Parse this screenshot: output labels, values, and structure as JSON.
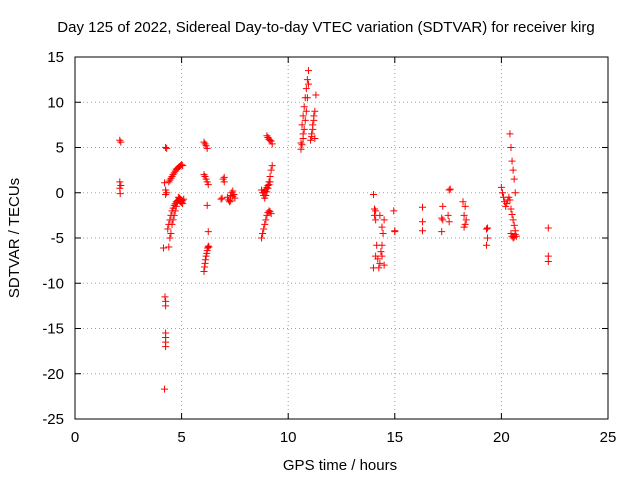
{
  "chart_data": {
    "type": "scatter",
    "title": "Day 125 of 2022, Sidereal Day-to-day VTEC variation (SDTVAR) for receiver kirg",
    "xlabel": "GPS time / hours",
    "ylabel": "SDTVAR / TECUs",
    "xlim": [
      0,
      25
    ],
    "ylim": [
      -25,
      15
    ],
    "xticks": [
      0,
      5,
      10,
      15,
      20,
      25
    ],
    "yticks": [
      -25,
      -20,
      -15,
      -10,
      -5,
      0,
      5,
      10,
      15
    ],
    "grid": true,
    "marker": "+",
    "series_color": "#ff0000",
    "x": [
      2.1,
      2.15,
      2.1,
      2.15,
      2.1,
      2.12,
      4.15,
      4.2,
      4.25,
      4.3,
      4.22,
      4.2,
      4.25,
      4.25,
      4.25,
      4.25,
      4.25,
      4.25,
      4.25,
      4.25,
      4.3,
      4.35,
      4.4,
      4.45,
      4.5,
      4.55,
      4.6,
      4.65,
      4.7,
      4.75,
      4.8,
      4.85,
      4.9,
      4.95,
      5.0,
      5.05,
      4.4,
      4.45,
      4.5,
      4.55,
      4.6,
      4.65,
      4.7,
      4.75,
      4.8,
      4.85,
      4.9,
      4.95,
      5.0,
      5.05,
      4.4,
      4.45,
      4.5,
      4.55,
      4.6,
      4.65,
      4.7,
      4.75,
      4.8,
      4.85,
      4.9,
      4.95,
      5.0,
      5.05,
      5.1,
      6.05,
      6.1,
      6.15,
      6.2,
      6.05,
      6.1,
      6.15,
      6.2,
      6.25,
      6.05,
      6.08,
      6.1,
      6.12,
      6.15,
      6.18,
      6.2,
      6.22,
      6.25,
      6.28,
      6.2,
      6.25,
      6.85,
      6.9,
      6.95,
      7.0,
      7.0,
      7.15,
      7.2,
      7.25,
      7.3,
      7.35,
      7.4,
      7.45,
      7.5,
      7.3,
      7.4,
      8.75,
      8.8,
      8.85,
      8.9,
      8.95,
      9.0,
      9.05,
      9.1,
      9.15,
      9.2,
      8.85,
      8.9,
      8.95,
      9.0,
      9.05,
      9.1,
      9.15,
      9.2,
      9.25,
      8.75,
      8.8,
      8.85,
      8.9,
      8.95,
      9.0,
      9.05,
      9.1,
      9.15,
      9.0,
      9.05,
      9.1,
      9.15,
      9.2,
      9.25,
      10.6,
      10.65,
      10.7,
      10.75,
      10.8,
      10.85,
      10.9,
      10.95,
      10.65,
      10.7,
      10.75,
      10.8,
      10.85,
      10.9,
      10.95,
      10.6,
      10.7,
      11.05,
      11.1,
      11.15,
      11.2,
      11.25,
      11.3,
      11.1,
      11.15,
      11.2,
      11.25,
      14.0,
      14.05,
      14.1,
      14.15,
      14.2,
      14.0,
      14.1,
      14.05,
      14.1,
      14.25,
      14.3,
      14.35,
      14.4,
      14.45,
      14.5,
      14.3,
      14.4,
      14.5,
      14.4,
      14.95,
      15.0,
      15.0,
      16.3,
      16.3,
      16.3,
      17.2,
      17.25,
      17.2,
      17.25,
      17.55,
      17.6,
      17.5,
      17.55,
      18.2,
      18.25,
      18.3,
      18.35,
      18.3,
      18.25,
      19.3,
      19.35,
      19.35,
      19.3,
      20.0,
      20.05,
      20.1,
      20.15,
      20.2,
      20.25,
      20.3,
      20.35,
      20.4,
      20.45,
      20.5,
      20.55,
      20.6,
      20.65,
      20.4,
      20.45,
      20.5,
      20.55,
      20.6,
      20.65,
      20.7,
      20.45,
      20.5,
      20.55,
      20.6,
      20.65,
      22.2,
      22.2,
      22.2
    ],
    "y": [
      5.8,
      5.6,
      1.2,
      0.8,
      0.5,
      -0.1,
      -6.1,
      1.1,
      5.0,
      4.9,
      -11.5,
      -21.7,
      -12.0,
      -12.5,
      -15.5,
      -16.0,
      -16.5,
      -17.0,
      -0.2,
      0.3,
      0.0,
      -4.0,
      -3.5,
      -3.0,
      -2.5,
      -2.0,
      -1.7,
      -1.4,
      -1.2,
      -1.0,
      -0.9,
      -0.8,
      -0.9,
      -1.0,
      -1.1,
      -1.2,
      1.2,
      1.4,
      1.6,
      1.8,
      2.0,
      2.2,
      2.4,
      2.6,
      2.7,
      2.8,
      2.9,
      3.0,
      3.1,
      3.0,
      -6.0,
      -5.0,
      -4.5,
      -3.5,
      -3.0,
      -2.5,
      -2.0,
      -1.5,
      -1.0,
      -0.5,
      -0.6,
      -0.7,
      -0.8,
      -0.9,
      -0.7,
      5.6,
      5.4,
      5.2,
      4.9,
      2.0,
      1.8,
      1.5,
      1.2,
      0.9,
      -8.7,
      -8.2,
      -7.8,
      -7.4,
      -7.0,
      -6.7,
      -6.4,
      -6.1,
      -5.9,
      -6.0,
      -1.4,
      -4.3,
      -0.7,
      -0.6,
      1.5,
      1.7,
      1.2,
      -0.5,
      -0.8,
      -1.0,
      -0.3,
      0.0,
      -0.4,
      -0.2,
      -0.6,
      -0.9,
      0.2,
      -5.0,
      -4.5,
      -4.0,
      -3.5,
      -3.0,
      -2.5,
      -2.2,
      -2.0,
      -2.1,
      -2.3,
      0.0,
      0.2,
      0.4,
      0.6,
      0.8,
      1.2,
      1.8,
      2.5,
      3.0,
      0.3,
      0.0,
      -0.3,
      -0.6,
      -0.3,
      0.1,
      0.5,
      0.9,
      1.2,
      6.3,
      6.1,
      5.9,
      5.8,
      5.7,
      5.4,
      4.8,
      5.3,
      6.0,
      7.0,
      8.0,
      9.0,
      10.5,
      12.0,
      7.5,
      8.5,
      9.5,
      10.5,
      11.5,
      12.5,
      13.5,
      5.5,
      6.5,
      5.8,
      6.2,
      7.0,
      8.0,
      9.0,
      10.8,
      6.5,
      7.5,
      8.5,
      6.0,
      -0.2,
      -1.8,
      -3.0,
      -5.8,
      -7.3,
      -8.3,
      -7.0,
      -2.5,
      -2.0,
      -8.3,
      -7.8,
      -6.5,
      -5.8,
      -4.5,
      -3.0,
      -2.5,
      -3.8,
      -8.0,
      -7.0,
      -2.0,
      -4.2,
      -4.3,
      -1.6,
      -3.2,
      -4.2,
      -2.8,
      -3.0,
      -4.3,
      -1.5,
      0.3,
      0.4,
      -2.5,
      -3.2,
      -1.0,
      -2.5,
      -3.5,
      -3.0,
      -1.5,
      -3.8,
      -4.0,
      -3.9,
      -5.0,
      -5.8,
      0.6,
      0.0,
      -0.5,
      -1.0,
      -1.5,
      -1.2,
      -0.8,
      -0.5,
      6.5,
      5.0,
      3.5,
      2.5,
      1.5,
      0.0,
      -0.8,
      -1.8,
      -2.4,
      -3.0,
      -3.6,
      -4.2,
      -4.8,
      -4.5,
      -4.8,
      -5.0,
      -4.9,
      -4.6,
      -3.9,
      -7.0,
      -7.6
    ]
  }
}
